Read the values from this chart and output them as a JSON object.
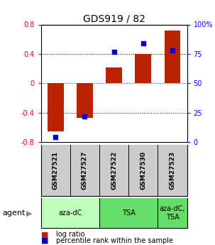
{
  "title": "GDS919 / 82",
  "samples": [
    "GSM27521",
    "GSM27527",
    "GSM27522",
    "GSM27530",
    "GSM27523"
  ],
  "log_ratios": [
    -0.65,
    -0.47,
    0.22,
    0.4,
    0.72
  ],
  "percentiles": [
    4,
    22,
    77,
    84,
    78
  ],
  "ylim": [
    -0.8,
    0.8
  ],
  "yticks_left": [
    -0.8,
    -0.4,
    0.0,
    0.4,
    0.8
  ],
  "yticks_right": [
    0,
    25,
    50,
    75,
    100
  ],
  "group_info": [
    {
      "indices": [
        0,
        1
      ],
      "label": "aza-dC",
      "color": "#bbffbb"
    },
    {
      "indices": [
        2,
        3
      ],
      "label": "TSA",
      "color": "#66dd66"
    },
    {
      "indices": [
        4
      ],
      "label": "aza-dC,\nTSA",
      "color": "#66dd66"
    }
  ],
  "bar_color": "#bb2200",
  "dot_color": "#0000cc",
  "sample_box_color": "#cccccc",
  "agent_label": "agent",
  "legend_items": [
    {
      "color": "#bb2200",
      "label": "log ratio"
    },
    {
      "color": "#0000cc",
      "label": "percentile rank within the sample"
    }
  ]
}
